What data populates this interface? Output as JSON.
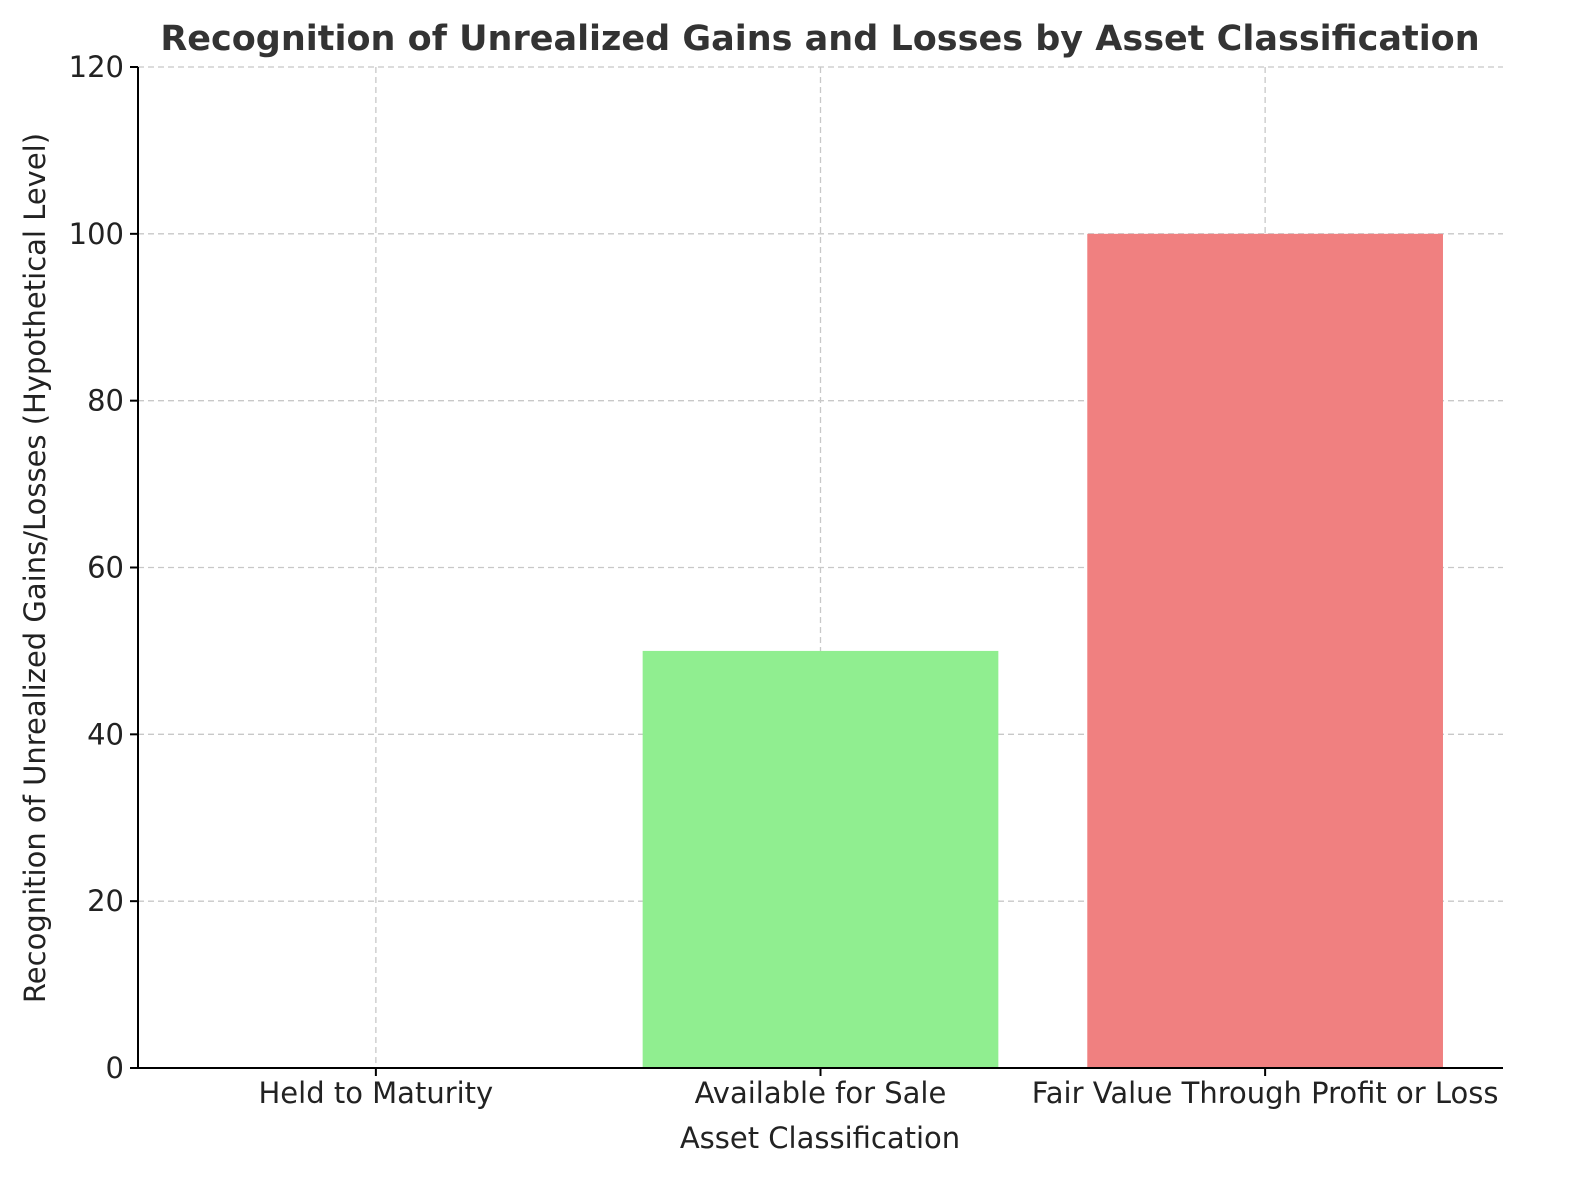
{
  "chart_data": {
    "type": "bar",
    "title": "Recognition of Unrealized Gains and Losses by Asset Classification",
    "xlabel": "Asset Classification",
    "ylabel": "Recognition of Unrealized Gains/Losses (Hypothetical Level)",
    "categories": [
      "Held to Maturity",
      "Available for Sale",
      "Fair Value Through Profit or Loss"
    ],
    "values": [
      0,
      50,
      100
    ],
    "colors": [
      "#add8e6",
      "#90ee90",
      "#f08080"
    ],
    "ylim": [
      0,
      120
    ],
    "yticks": [
      0,
      20,
      40,
      60,
      80,
      100,
      120
    ],
    "grid": true,
    "legend": "none"
  }
}
